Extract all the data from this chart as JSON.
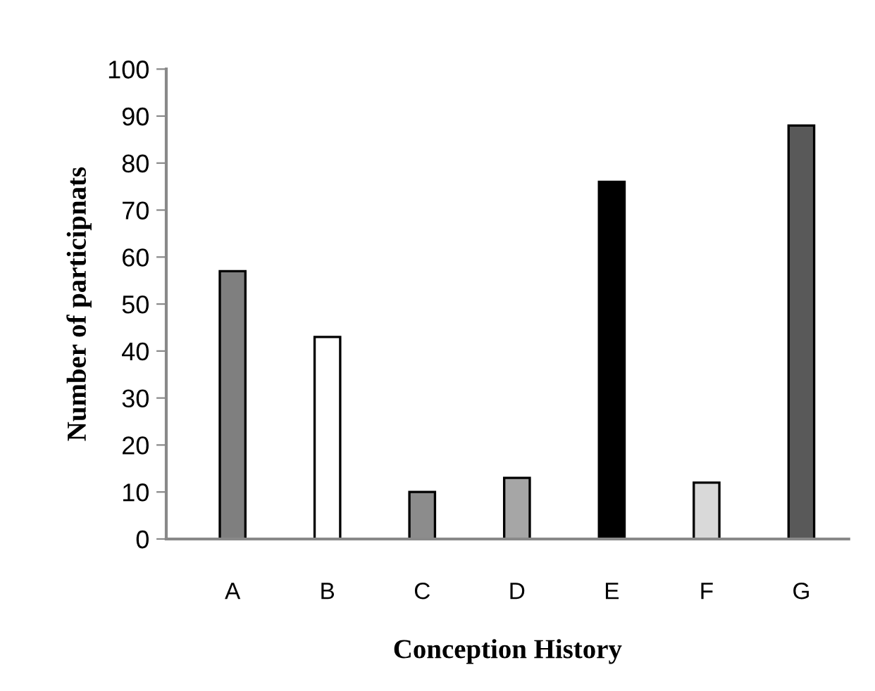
{
  "chart_data": {
    "type": "bar",
    "xlabel": "Conception History",
    "ylabel": "Number of participnats",
    "categories": [
      "A",
      "B",
      "C",
      "D",
      "E",
      "F",
      "G"
    ],
    "values": [
      57,
      43,
      10,
      13,
      76,
      12,
      88
    ],
    "colors": [
      "#7f7f7f",
      "#ffffff",
      "#8c8c8c",
      "#a6a6a6",
      "#000000",
      "#d9d9d9",
      "#595959"
    ],
    "ylim": [
      0,
      100
    ],
    "yticks": [
      0,
      10,
      20,
      30,
      40,
      50,
      60,
      70,
      80,
      90,
      100
    ],
    "grid": false,
    "legend": false
  }
}
